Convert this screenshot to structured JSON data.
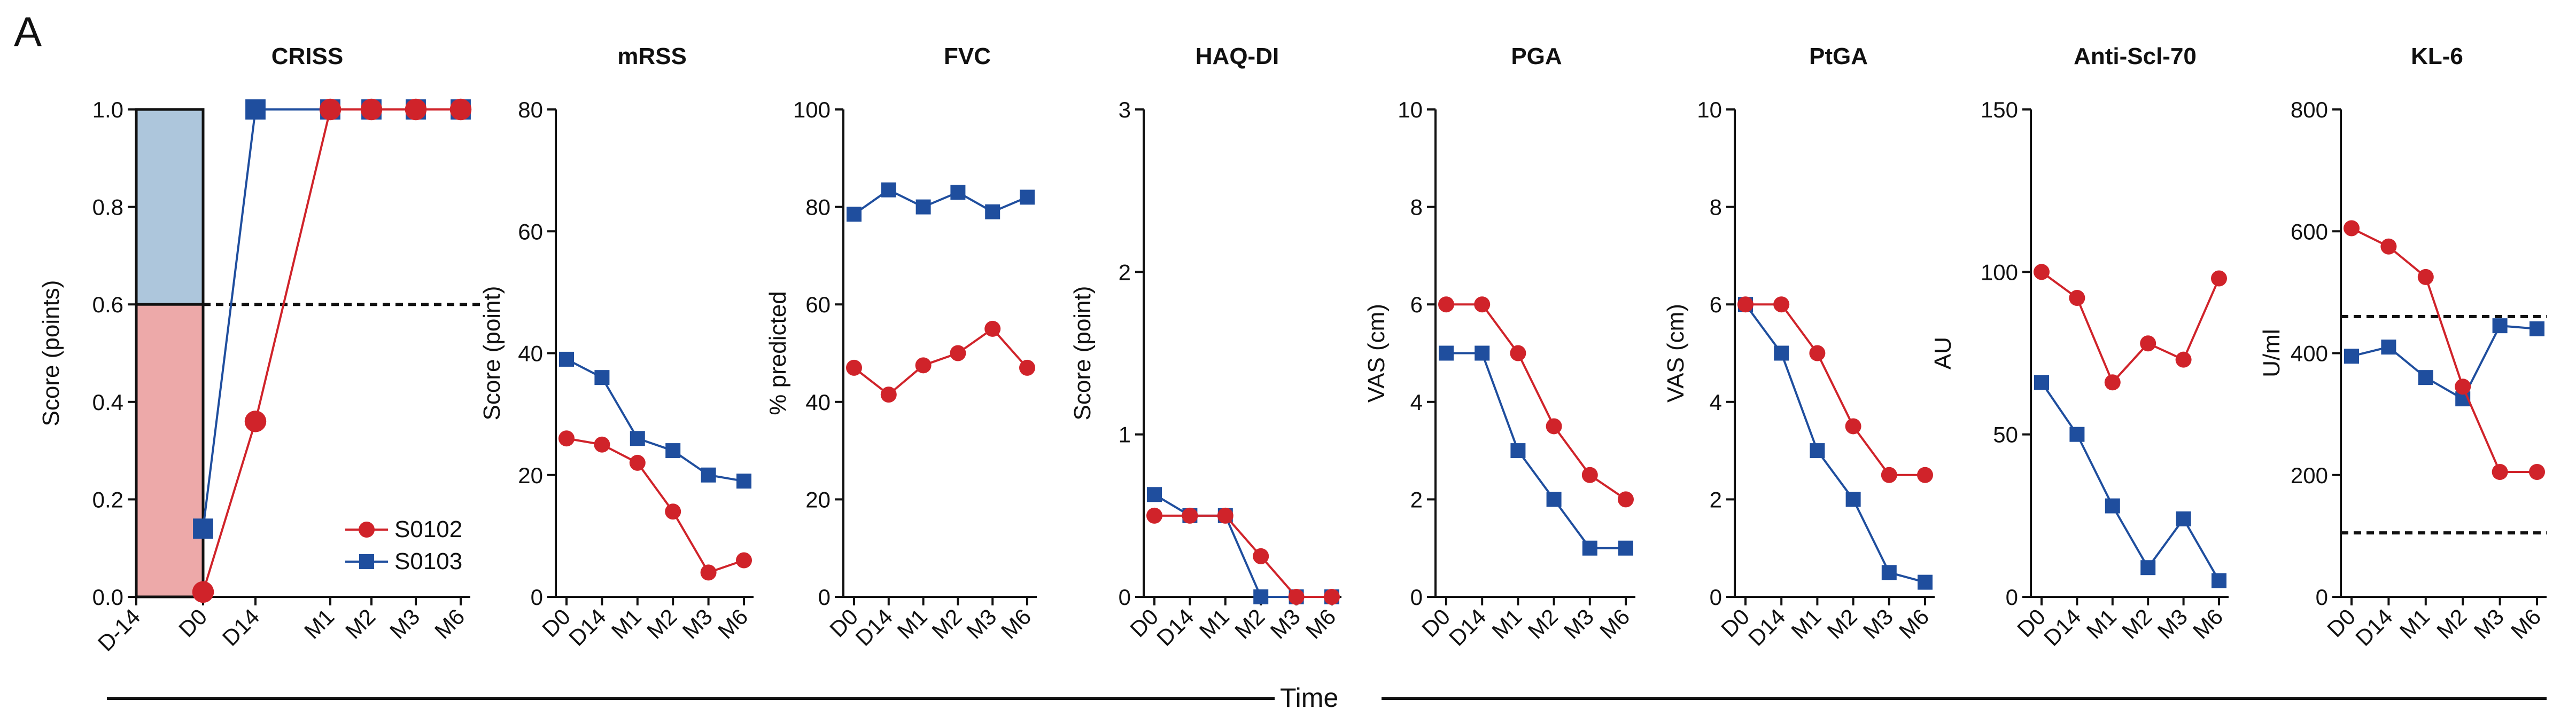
{
  "panel_label": "A",
  "x_axis_title": "Time",
  "legend": [
    {
      "name": "S0102",
      "color": "#d0232a",
      "marker": "circle"
    },
    {
      "name": "S0103",
      "color": "#1f4e9e",
      "marker": "square"
    }
  ],
  "chart_data": [
    {
      "type": "line",
      "title": "CRISS",
      "ylabel": "Score (points)",
      "ylim": [
        0,
        1.0
      ],
      "yticks": [
        "0.0",
        "0.2",
        "0.4",
        "0.6",
        "0.8",
        "1.0"
      ],
      "xticks": [
        "D-14",
        "D0",
        "D14",
        "M1",
        "M2",
        "M3",
        "M6"
      ],
      "threshold": 0.6,
      "shaded_bands": [
        {
          "from": 0.6,
          "to": 1.0,
          "color": "#adc6dc"
        },
        {
          "from": 0.0,
          "to": 0.6,
          "color": "#eda9a9"
        }
      ],
      "series": [
        {
          "name": "S0102",
          "values": [
            null,
            0.01,
            0.36,
            1.0,
            1.0,
            1.0,
            1.0
          ]
        },
        {
          "name": "S0103",
          "values": [
            null,
            0.14,
            1.0,
            1.0,
            1.0,
            1.0,
            1.0
          ]
        }
      ]
    },
    {
      "type": "line",
      "title": "mRSS",
      "ylabel": "Score (point)",
      "ylim": [
        0,
        80
      ],
      "yticks": [
        "0",
        "20",
        "40",
        "60",
        "80"
      ],
      "xticks": [
        "D0",
        "D14",
        "M1",
        "M2",
        "M3",
        "M6"
      ],
      "series": [
        {
          "name": "S0102",
          "values": [
            26,
            25,
            22,
            14,
            4,
            6
          ]
        },
        {
          "name": "S0103",
          "values": [
            39,
            36,
            26,
            24,
            20,
            19
          ]
        }
      ]
    },
    {
      "type": "line",
      "title": "FVC",
      "ylabel": "% predicted",
      "ylim": [
        0,
        100
      ],
      "yticks": [
        "0",
        "20",
        "40",
        "60",
        "80",
        "100"
      ],
      "xticks": [
        "D0",
        "D14",
        "M1",
        "M2",
        "M3",
        "M6"
      ],
      "series": [
        {
          "name": "S0102",
          "values": [
            47,
            41.5,
            47.5,
            50,
            55,
            47
          ]
        },
        {
          "name": "S0103",
          "values": [
            78.5,
            83.5,
            80,
            83,
            79,
            82
          ]
        }
      ]
    },
    {
      "type": "line",
      "title": "HAQ-DI",
      "ylabel": "Score (point)",
      "ylim": [
        0,
        3
      ],
      "yticks": [
        "0",
        "1",
        "2",
        "3"
      ],
      "xticks": [
        "D0",
        "D14",
        "M1",
        "M2",
        "M3",
        "M6"
      ],
      "series": [
        {
          "name": "S0102",
          "values": [
            0.5,
            0.5,
            0.5,
            0.25,
            0,
            0
          ]
        },
        {
          "name": "S0103",
          "values": [
            0.63,
            0.5,
            0.5,
            0,
            0,
            0
          ]
        }
      ]
    },
    {
      "type": "line",
      "title": "PGA",
      "ylabel": "VAS (cm)",
      "ylim": [
        0,
        10
      ],
      "yticks": [
        "0",
        "2",
        "4",
        "6",
        "8",
        "10"
      ],
      "xticks": [
        "D0",
        "D14",
        "M1",
        "M2",
        "M3",
        "M6"
      ],
      "series": [
        {
          "name": "S0102",
          "values": [
            6,
            6,
            5,
            3.5,
            2.5,
            2
          ]
        },
        {
          "name": "S0103",
          "values": [
            5,
            5,
            3,
            2,
            1,
            1
          ]
        }
      ]
    },
    {
      "type": "line",
      "title": "PtGA",
      "ylabel": "VAS (cm)",
      "ylim": [
        0,
        10
      ],
      "yticks": [
        "0",
        "2",
        "4",
        "6",
        "8",
        "10"
      ],
      "xticks": [
        "D0",
        "D14",
        "M1",
        "M2",
        "M3",
        "M6"
      ],
      "series": [
        {
          "name": "S0102",
          "values": [
            6,
            6,
            5,
            3.5,
            2.5,
            2.5
          ]
        },
        {
          "name": "S0103",
          "values": [
            6,
            5,
            3,
            2,
            0.5,
            0.3
          ]
        }
      ]
    },
    {
      "type": "line",
      "title": "Anti-Scl-70",
      "ylabel": "AU",
      "ylim": [
        0,
        150
      ],
      "yticks": [
        "0",
        "50",
        "100",
        "150"
      ],
      "xticks": [
        "D0",
        "D14",
        "M1",
        "M2",
        "M3",
        "M6"
      ],
      "series": [
        {
          "name": "S0102",
          "values": [
            100,
            92,
            66,
            78,
            73,
            98
          ]
        },
        {
          "name": "S0103",
          "values": [
            66,
            50,
            28,
            9,
            24,
            5
          ]
        }
      ]
    },
    {
      "type": "line",
      "title": "KL-6",
      "ylabel": "U/ml",
      "ylim": [
        0,
        800
      ],
      "yticks": [
        "0",
        "200",
        "400",
        "600",
        "800"
      ],
      "xticks": [
        "D0",
        "D14",
        "M1",
        "M2",
        "M3",
        "M6"
      ],
      "thresholds": [
        460,
        105
      ],
      "series": [
        {
          "name": "S0102",
          "values": [
            605,
            575,
            525,
            345,
            205,
            205
          ]
        },
        {
          "name": "S0103",
          "values": [
            395,
            410,
            360,
            325,
            445,
            440
          ]
        }
      ]
    }
  ]
}
